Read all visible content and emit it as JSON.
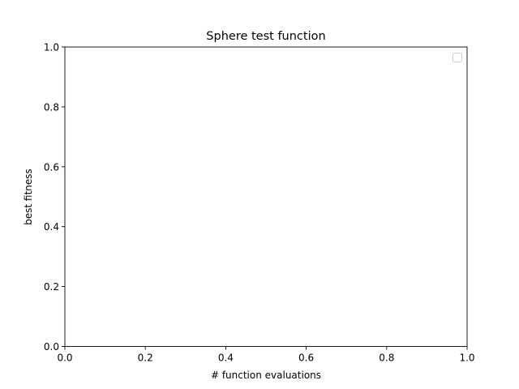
{
  "chart_data": {
    "type": "line",
    "title": "Sphere test function",
    "xlabel": "# function evaluations",
    "ylabel": "best fitness",
    "xlim": [
      0.0,
      1.0
    ],
    "ylim": [
      0.0,
      1.0
    ],
    "xticks": [
      "0.0",
      "0.2",
      "0.4",
      "0.6",
      "0.8",
      "1.0"
    ],
    "yticks": [
      "0.0",
      "0.2",
      "0.4",
      "0.6",
      "0.8",
      "1.0"
    ],
    "series": [],
    "grid": false,
    "legend": {
      "placement": "upper-right",
      "entries": []
    }
  }
}
